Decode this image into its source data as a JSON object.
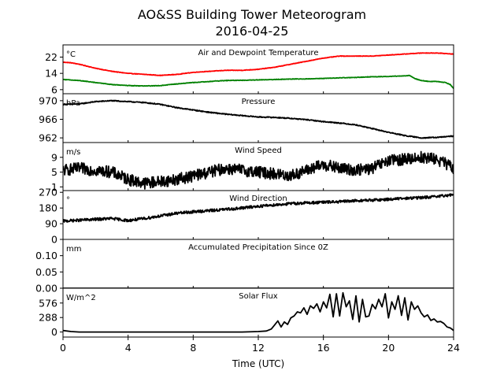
{
  "figure": {
    "title": "AO&SS Building Tower Meteorogram",
    "subtitle": "2016-04-25",
    "xlabel": "Time (UTC)",
    "x_ticks": [
      0,
      4,
      8,
      12,
      16,
      20,
      24
    ],
    "xlim": [
      0,
      24
    ]
  },
  "chart_data": [
    {
      "type": "line",
      "title": "Air and Dewpoint Temperature",
      "ylabel": "°C",
      "ylim": [
        4,
        28
      ],
      "y_ticks": [
        6,
        14,
        22
      ],
      "y_tick_labels": [
        "6",
        "14",
        "22"
      ],
      "noise": 0.12,
      "series": [
        {
          "color": "#ff0000",
          "x": [
            0,
            0.5,
            1,
            2,
            3,
            4,
            5,
            6,
            7,
            8,
            9,
            10,
            11,
            12,
            13,
            14,
            15,
            16,
            17,
            18,
            19,
            20,
            21,
            22,
            23,
            24
          ],
          "values": [
            19.5,
            19.2,
            18.5,
            16.5,
            15,
            14,
            13.5,
            13,
            13.5,
            14.5,
            15,
            15.5,
            15.5,
            16,
            17,
            18.5,
            20,
            21.5,
            22.5,
            22.5,
            22.5,
            23,
            23.5,
            24,
            24,
            23.5
          ]
        },
        {
          "color": "#008000",
          "x": [
            0,
            1,
            2,
            3,
            4,
            5,
            6,
            7,
            8,
            9,
            10,
            11,
            12,
            13,
            14,
            15,
            16,
            17,
            18,
            19,
            20,
            21,
            21.3,
            21.6,
            22,
            22.5,
            23,
            23.5,
            23.8,
            24
          ],
          "values": [
            11,
            10.5,
            9.5,
            8.5,
            8,
            7.8,
            8,
            8.8,
            9.5,
            10,
            10.5,
            10.6,
            10.8,
            11,
            11.2,
            11.3,
            11.5,
            11.8,
            12,
            12.3,
            12.5,
            12.8,
            13,
            11.5,
            10.5,
            10,
            10,
            9.5,
            8.5,
            6.5
          ]
        }
      ]
    },
    {
      "type": "line",
      "title": "Pressure",
      "ylabel": "hPa",
      "ylim": [
        961,
        971.5
      ],
      "y_ticks": [
        962,
        966,
        970
      ],
      "y_tick_labels": [
        "962",
        "966",
        "970"
      ],
      "noise": 0.1,
      "series": [
        {
          "color": "#000000",
          "x": [
            0,
            1,
            2,
            3,
            4,
            5,
            6,
            7,
            8,
            9,
            10,
            11,
            12,
            13,
            14,
            15,
            16,
            17,
            18,
            19,
            20,
            21,
            22,
            23,
            24
          ],
          "values": [
            969.2,
            969.3,
            969.8,
            970.0,
            969.8,
            969.6,
            969.2,
            968.5,
            968.0,
            967.5,
            967.1,
            966.8,
            966.5,
            966.4,
            966.2,
            965.9,
            965.5,
            965.2,
            964.8,
            964.0,
            963.2,
            962.5,
            962.0,
            962.1,
            962.4
          ]
        }
      ]
    },
    {
      "type": "line",
      "title": "Wind Speed",
      "ylabel": "m/s",
      "ylim": [
        0,
        13
      ],
      "y_ticks": [
        1,
        5,
        9
      ],
      "y_tick_labels": [
        "1",
        "5",
        "9"
      ],
      "noise": 1.6,
      "series": [
        {
          "color": "#000000",
          "x": [
            0,
            1,
            2,
            3,
            4,
            5,
            6,
            7,
            8,
            9,
            10,
            11,
            12,
            13,
            14,
            15,
            16,
            17,
            18,
            19,
            20,
            21,
            22,
            23,
            24
          ],
          "values": [
            5.5,
            6,
            5.5,
            5,
            3,
            2,
            2.5,
            3,
            4,
            5,
            6,
            5.5,
            5,
            4.5,
            4,
            5.5,
            7,
            6,
            5.5,
            6,
            8,
            8.5,
            9,
            8.5,
            6
          ]
        }
      ]
    },
    {
      "type": "line",
      "title": "Wind Direction",
      "ylabel": "°",
      "ylim": [
        0,
        280
      ],
      "y_ticks": [
        0,
        90,
        180,
        270
      ],
      "y_tick_labels": [
        "0",
        "90",
        "180",
        "270"
      ],
      "noise": 8,
      "series": [
        {
          "color": "#000000",
          "x": [
            0,
            1,
            2,
            3,
            4,
            5,
            6,
            7,
            8,
            9,
            10,
            11,
            12,
            13,
            14,
            15,
            16,
            17,
            18,
            19,
            20,
            21,
            22,
            23,
            24
          ],
          "values": [
            105,
            110,
            115,
            120,
            108,
            120,
            135,
            150,
            158,
            165,
            172,
            180,
            190,
            198,
            205,
            210,
            213,
            216,
            222,
            225,
            230,
            235,
            240,
            245,
            258
          ]
        }
      ]
    },
    {
      "type": "line",
      "title": "Accumulated Precipitation Since 0Z",
      "ylabel": "mm",
      "ylim": [
        0,
        0.15
      ],
      "y_ticks": [
        0,
        0.05,
        0.1
      ],
      "y_tick_labels": [
        "0.00",
        "0.05",
        "0.10"
      ],
      "noise": 0,
      "series": [
        {
          "color": "#000000",
          "x": [
            0,
            24
          ],
          "values": [
            0,
            0
          ]
        }
      ]
    },
    {
      "type": "line",
      "title": "Solar Flux",
      "ylabel": "W/m^2",
      "ylim": [
        -100,
        870
      ],
      "y_ticks": [
        0,
        288,
        576
      ],
      "y_tick_labels": [
        "0",
        "288",
        "576"
      ],
      "noise": 0,
      "series": [
        {
          "color": "#000000",
          "x": [
            0,
            0.5,
            1,
            2,
            4,
            6,
            8,
            10,
            11,
            12,
            12.5,
            12.8,
            13,
            13.2,
            13.4,
            13.6,
            13.8,
            14,
            14.2,
            14.4,
            14.6,
            14.8,
            15,
            15.2,
            15.4,
            15.6,
            15.8,
            16,
            16.2,
            16.4,
            16.6,
            16.8,
            17,
            17.2,
            17.4,
            17.6,
            17.8,
            18,
            18.2,
            18.4,
            18.6,
            18.8,
            19,
            19.2,
            19.4,
            19.6,
            19.8,
            20,
            20.2,
            20.4,
            20.6,
            20.8,
            21,
            21.2,
            21.4,
            21.6,
            21.8,
            22,
            22.2,
            22.4,
            22.6,
            22.8,
            23,
            23.2,
            23.4,
            23.6,
            23.8,
            24
          ],
          "values": [
            30,
            10,
            0,
            0,
            0,
            0,
            0,
            0,
            0,
            10,
            20,
            60,
            140,
            220,
            100,
            200,
            150,
            280,
            320,
            400,
            380,
            480,
            350,
            520,
            470,
            560,
            400,
            600,
            480,
            750,
            300,
            760,
            320,
            780,
            500,
            620,
            250,
            720,
            200,
            650,
            300,
            320,
            550,
            460,
            650,
            500,
            760,
            280,
            600,
            450,
            720,
            330,
            680,
            240,
            600,
            450,
            520,
            380,
            300,
            340,
            230,
            260,
            200,
            210,
            170,
            100,
            80,
            30
          ]
        }
      ]
    }
  ]
}
